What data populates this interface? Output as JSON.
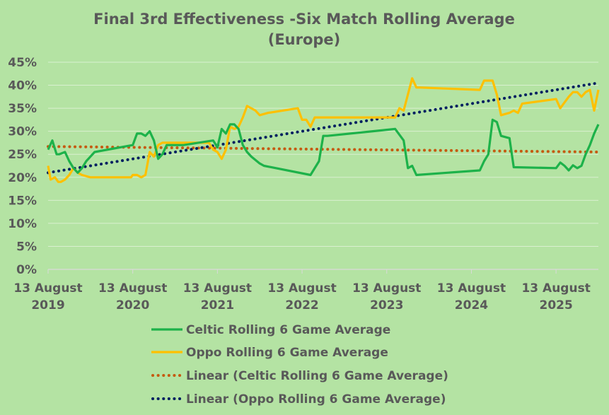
{
  "chart_data": {
    "type": "line",
    "title": [
      "Final 3rd Effectiveness -Six Match Rolling Average",
      "(Europe)"
    ],
    "xlabel": "",
    "ylabel": "",
    "ylim": [
      0,
      0.45
    ],
    "y_ticks": [
      {
        "value": 0.0,
        "label": "0%"
      },
      {
        "value": 0.05,
        "label": "5%"
      },
      {
        "value": 0.1,
        "label": "10%"
      },
      {
        "value": 0.15,
        "label": "15%"
      },
      {
        "value": 0.2,
        "label": "20%"
      },
      {
        "value": 0.25,
        "label": "25%"
      },
      {
        "value": 0.3,
        "label": "30%"
      },
      {
        "value": 0.35,
        "label": "35%"
      },
      {
        "value": 0.4,
        "label": "40%"
      },
      {
        "value": 0.45,
        "label": "45%"
      }
    ],
    "xlim": [
      0,
      6.5
    ],
    "x_ticks": [
      {
        "value": 0,
        "line1": "13 August",
        "line2": "2019"
      },
      {
        "value": 1,
        "line1": "13 August",
        "line2": "2020"
      },
      {
        "value": 2,
        "line1": "13 August",
        "line2": "2021"
      },
      {
        "value": 3,
        "line1": "13 August",
        "line2": "2022"
      },
      {
        "value": 4,
        "line1": "13 August",
        "line2": "2023"
      },
      {
        "value": 5,
        "line1": "13 August",
        "line2": "2024"
      },
      {
        "value": 6,
        "line1": "13 August",
        "line2": "2025"
      }
    ],
    "grid": "horizontal",
    "legend_position": "bottom",
    "x_unit": "years since 13 August 2019",
    "series": [
      {
        "name": "Celtic Rolling 6 Game Average",
        "style": "solid",
        "color": "#1db24a",
        "x": [
          0.0,
          0.05,
          0.1,
          0.13,
          0.2,
          0.25,
          0.3,
          0.35,
          0.4,
          0.45,
          0.55,
          1.0,
          1.05,
          1.1,
          1.15,
          1.2,
          1.25,
          1.3,
          1.35,
          1.4,
          1.5,
          1.6,
          1.95,
          2.0,
          2.05,
          2.1,
          2.15,
          2.2,
          2.25,
          2.3,
          2.35,
          2.4,
          2.5,
          2.55,
          3.1,
          3.2,
          3.25,
          3.3,
          4.1,
          4.2,
          4.25,
          4.3,
          4.35,
          5.1,
          5.15,
          5.2,
          5.25,
          5.3,
          5.35,
          5.45,
          5.5,
          6.0,
          6.05,
          6.1,
          6.15,
          6.2,
          6.25,
          6.3,
          6.35,
          6.4,
          6.45,
          6.5
        ],
        "y": [
          0.26,
          0.28,
          0.25,
          0.25,
          0.255,
          0.235,
          0.22,
          0.21,
          0.22,
          0.235,
          0.255,
          0.27,
          0.295,
          0.295,
          0.29,
          0.3,
          0.28,
          0.24,
          0.25,
          0.27,
          0.27,
          0.27,
          0.28,
          0.265,
          0.305,
          0.295,
          0.315,
          0.315,
          0.305,
          0.27,
          0.255,
          0.245,
          0.23,
          0.225,
          0.205,
          0.235,
          0.29,
          0.29,
          0.305,
          0.28,
          0.22,
          0.225,
          0.205,
          0.215,
          0.235,
          0.25,
          0.325,
          0.32,
          0.29,
          0.285,
          0.222,
          0.22,
          0.232,
          0.225,
          0.215,
          0.226,
          0.22,
          0.225,
          0.25,
          0.27,
          0.295,
          0.315
        ]
      },
      {
        "name": "Oppo Rolling 6 Game Average",
        "style": "solid",
        "color": "#ffc000",
        "x": [
          0.0,
          0.03,
          0.08,
          0.12,
          0.15,
          0.2,
          0.25,
          0.3,
          0.35,
          0.4,
          0.5,
          0.55,
          0.98,
          1.0,
          1.05,
          1.1,
          1.15,
          1.2,
          1.25,
          1.3,
          1.35,
          1.9,
          1.95,
          2.0,
          2.05,
          2.1,
          2.15,
          2.2,
          2.25,
          2.3,
          2.35,
          2.45,
          2.5,
          2.6,
          2.95,
          3.0,
          3.05,
          3.1,
          3.15,
          3.2,
          4.1,
          4.15,
          4.2,
          4.25,
          4.3,
          4.35,
          4.4,
          5.1,
          5.15,
          5.25,
          5.3,
          5.35,
          5.45,
          5.5,
          5.55,
          5.6,
          6.0,
          6.05,
          6.15,
          6.2,
          6.25,
          6.3,
          6.35,
          6.4,
          6.45,
          6.5
        ],
        "y": [
          0.225,
          0.195,
          0.2,
          0.19,
          0.19,
          0.195,
          0.205,
          0.22,
          0.21,
          0.205,
          0.2,
          0.2,
          0.2,
          0.205,
          0.205,
          0.2,
          0.205,
          0.255,
          0.245,
          0.27,
          0.275,
          0.275,
          0.26,
          0.255,
          0.24,
          0.26,
          0.31,
          0.305,
          0.31,
          0.33,
          0.355,
          0.345,
          0.335,
          0.34,
          0.35,
          0.325,
          0.325,
          0.31,
          0.33,
          0.33,
          0.33,
          0.35,
          0.345,
          0.38,
          0.415,
          0.395,
          0.395,
          0.39,
          0.41,
          0.41,
          0.38,
          0.335,
          0.34,
          0.345,
          0.34,
          0.36,
          0.37,
          0.35,
          0.375,
          0.385,
          0.385,
          0.375,
          0.385,
          0.39,
          0.345,
          0.39
        ]
      },
      {
        "name": "Linear (Celtic Rolling 6 Game Average)",
        "style": "dotted",
        "color": "#c55a11",
        "x": [
          0,
          6.5
        ],
        "y": [
          0.267,
          0.255
        ]
      },
      {
        "name": "Linear (Oppo Rolling 6 Game Average)",
        "style": "dotted",
        "color": "#002060",
        "x": [
          0,
          6.5
        ],
        "y": [
          0.21,
          0.405
        ]
      }
    ]
  }
}
